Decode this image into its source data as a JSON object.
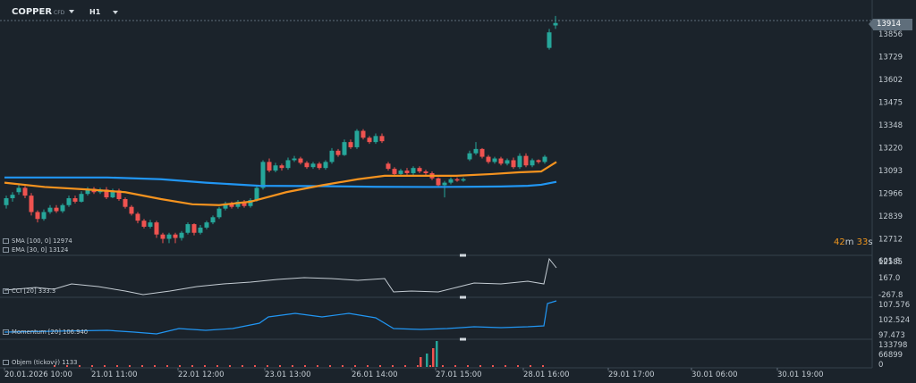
{
  "header": {
    "symbol": "COPPER",
    "symbol_tag": "CFD",
    "timeframe": "H1"
  },
  "price_axis": {
    "current_price": "13914",
    "labels": [
      "13856",
      "13729",
      "13602",
      "13475",
      "13348",
      "13220",
      "13093",
      "12966",
      "12839",
      "12712",
      "12585"
    ]
  },
  "indicators": {
    "sma": {
      "label": "SMA [100, 0]",
      "value": "12974",
      "color": "#2196f3"
    },
    "ema": {
      "label": "EMA [30, 0]",
      "value": "13124",
      "color": "#f5931f"
    },
    "cci": {
      "label": "CCI [20]",
      "value": "333.3",
      "axis": [
        "601.8",
        "167.0",
        "-267.8"
      ]
    },
    "momentum": {
      "label": "Momentum [20]",
      "value": "106.940",
      "axis": [
        "107.576",
        "102.524",
        "97.473"
      ]
    },
    "volume": {
      "label": "Objem (tickový)",
      "value": "1133",
      "axis": [
        "133798",
        "66899",
        "0"
      ]
    }
  },
  "countdown": {
    "minutes": "42",
    "m": "m",
    "seconds": "33",
    "s": "s"
  },
  "time_axis": [
    "20.01.2026  10:00",
    "21.01  11:00",
    "22.01  12:00",
    "23.01  13:00",
    "26.01  14:00",
    "27.01  15:00",
    "28.01  16:00",
    "29.01  17:00",
    "30.01  06:00",
    "30.01  19:00"
  ],
  "colors": {
    "up": "#26a69a",
    "down": "#ef5350",
    "bg": "#1b232b",
    "grid": "#26303a"
  }
}
